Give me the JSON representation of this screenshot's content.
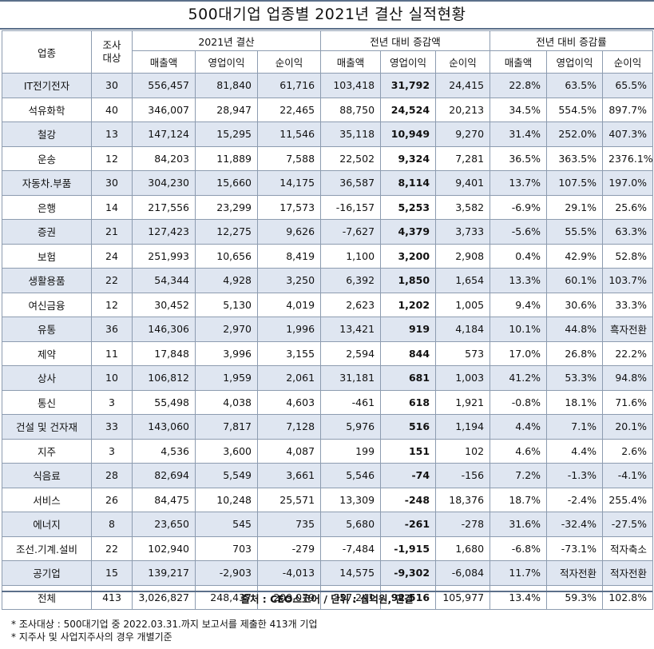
{
  "title": "500대기업 업종별 2021년 결산 실적현황",
  "headers": {
    "industry": "업종",
    "surveyed": "조사\n대상",
    "group1": "2021년 결산",
    "group2": "전년 대비 증감액",
    "group3": "전년 대비 증감률",
    "sub": [
      "매출액",
      "영업이익",
      "순이익",
      "매출액",
      "영업이익",
      "순이익",
      "매출액",
      "영업이익",
      "순이익"
    ]
  },
  "rows": [
    {
      "name": "IT전기전자",
      "n": "30",
      "v": [
        "556,457",
        "81,840",
        "61,716",
        "103,418",
        "31,792",
        "24,415",
        "22.8%",
        "63.5%",
        "65.5%"
      ]
    },
    {
      "name": "석유화학",
      "n": "40",
      "v": [
        "346,007",
        "28,947",
        "22,465",
        "88,750",
        "24,524",
        "20,213",
        "34.5%",
        "554.5%",
        "897.7%"
      ]
    },
    {
      "name": "철강",
      "n": "13",
      "v": [
        "147,124",
        "15,295",
        "11,546",
        "35,118",
        "10,949",
        "9,270",
        "31.4%",
        "252.0%",
        "407.3%"
      ]
    },
    {
      "name": "운송",
      "n": "12",
      "v": [
        "84,203",
        "11,889",
        "7,588",
        "22,502",
        "9,324",
        "7,281",
        "36.5%",
        "363.5%",
        "2376.1%"
      ]
    },
    {
      "name": "자동차.부품",
      "n": "30",
      "v": [
        "304,230",
        "15,660",
        "14,175",
        "36,587",
        "8,114",
        "9,401",
        "13.7%",
        "107.5%",
        "197.0%"
      ]
    },
    {
      "name": "은행",
      "n": "14",
      "v": [
        "217,556",
        "23,299",
        "17,573",
        "-16,157",
        "5,253",
        "3,582",
        "-6.9%",
        "29.1%",
        "25.6%"
      ]
    },
    {
      "name": "증권",
      "n": "21",
      "v": [
        "127,423",
        "12,275",
        "9,626",
        "-7,627",
        "4,379",
        "3,733",
        "-5.6%",
        "55.5%",
        "63.3%"
      ]
    },
    {
      "name": "보험",
      "n": "24",
      "v": [
        "251,993",
        "10,656",
        "8,419",
        "1,100",
        "3,200",
        "2,908",
        "0.4%",
        "42.9%",
        "52.8%"
      ]
    },
    {
      "name": "생활용품",
      "n": "22",
      "v": [
        "54,344",
        "4,928",
        "3,250",
        "6,392",
        "1,850",
        "1,654",
        "13.3%",
        "60.1%",
        "103.7%"
      ]
    },
    {
      "name": "여신금융",
      "n": "12",
      "v": [
        "30,452",
        "5,130",
        "4,019",
        "2,623",
        "1,202",
        "1,005",
        "9.4%",
        "30.6%",
        "33.3%"
      ]
    },
    {
      "name": "유통",
      "n": "36",
      "v": [
        "146,306",
        "2,970",
        "1,996",
        "13,421",
        "919",
        "4,184",
        "10.1%",
        "44.8%",
        "흑자전환"
      ]
    },
    {
      "name": "제약",
      "n": "11",
      "v": [
        "17,848",
        "3,996",
        "3,155",
        "2,594",
        "844",
        "573",
        "17.0%",
        "26.8%",
        "22.2%"
      ]
    },
    {
      "name": "상사",
      "n": "10",
      "v": [
        "106,812",
        "1,959",
        "2,061",
        "31,181",
        "681",
        "1,003",
        "41.2%",
        "53.3%",
        "94.8%"
      ]
    },
    {
      "name": "통신",
      "n": "3",
      "v": [
        "55,498",
        "4,038",
        "4,603",
        "-461",
        "618",
        "1,921",
        "-0.8%",
        "18.1%",
        "71.6%"
      ]
    },
    {
      "name": "건설 및 건자재",
      "n": "33",
      "v": [
        "143,060",
        "7,817",
        "7,128",
        "5,976",
        "516",
        "1,194",
        "4.4%",
        "7.1%",
        "20.1%"
      ]
    },
    {
      "name": "지주",
      "n": "3",
      "v": [
        "4,536",
        "3,600",
        "4,087",
        "199",
        "151",
        "102",
        "4.6%",
        "4.4%",
        "2.6%"
      ]
    },
    {
      "name": "식음료",
      "n": "28",
      "v": [
        "82,694",
        "5,549",
        "3,661",
        "5,546",
        "-74",
        "-156",
        "7.2%",
        "-1.3%",
        "-4.1%"
      ]
    },
    {
      "name": "서비스",
      "n": "26",
      "v": [
        "84,475",
        "10,248",
        "25,571",
        "13,309",
        "-248",
        "18,376",
        "18.7%",
        "-2.4%",
        "255.4%"
      ]
    },
    {
      "name": "에너지",
      "n": "8",
      "v": [
        "23,650",
        "545",
        "735",
        "5,680",
        "-261",
        "-278",
        "31.6%",
        "-32.4%",
        "-27.5%"
      ]
    },
    {
      "name": "조선.기계.설비",
      "n": "22",
      "v": [
        "102,940",
        "703",
        "-279",
        "-7,484",
        "-1,915",
        "1,680",
        "-6.8%",
        "-73.1%",
        "적자축소"
      ]
    },
    {
      "name": "공기업",
      "n": "15",
      "v": [
        "139,217",
        "-2,903",
        "-4,013",
        "14,575",
        "-9,302",
        "-6,084",
        "11.7%",
        "적자전환",
        "적자전환"
      ]
    },
    {
      "name": "전체",
      "n": "413",
      "v": [
        "3,026,827",
        "248,437",
        "209,079",
        "357,241",
        "92,516",
        "105,977",
        "13.4%",
        "59.3%",
        "102.8%"
      ]
    }
  ],
  "source": "출처 : CEO스코어 / 단위 : 십억원, 연결",
  "notes": [
    "* 조사대상 : 500대기업 중 2022.03.31.까지 보고서를 제출한 413개 기업",
    "* 지주사 및 사업지주사의 경우 개별기준"
  ],
  "colors": {
    "border": "#5b6f8a",
    "shade": "#dfe6f1",
    "grid": "#8d9cb0"
  }
}
